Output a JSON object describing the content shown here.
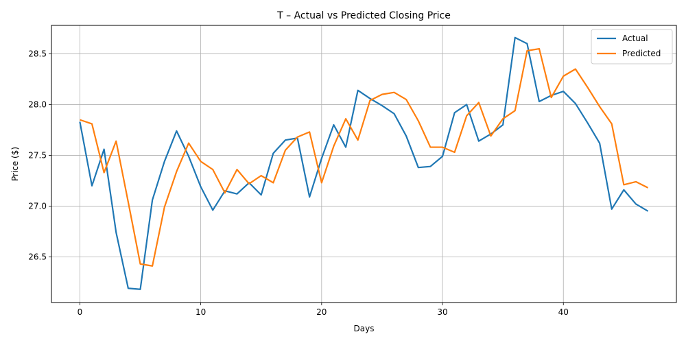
{
  "chart_data": {
    "type": "line",
    "title": "T – Actual vs Predicted Closing Price",
    "xlabel": "Days",
    "ylabel": "Price ($)",
    "xlim": [
      -2.35,
      49.35
    ],
    "ylim": [
      26.05,
      28.78
    ],
    "xticks": [
      0,
      10,
      20,
      30,
      40
    ],
    "yticks": [
      26.5,
      27.0,
      27.5,
      28.0,
      28.5
    ],
    "ytick_labels": [
      "26.5",
      "27.0",
      "27.5",
      "28.0",
      "28.5"
    ],
    "grid": true,
    "legend_position": "top-right",
    "series": [
      {
        "name": "Actual",
        "color": "#1f77b4",
        "values": [
          27.83,
          27.2,
          27.56,
          26.74,
          26.19,
          26.18,
          27.06,
          27.44,
          27.74,
          27.49,
          27.19,
          26.96,
          27.15,
          27.12,
          27.23,
          27.11,
          27.52,
          27.65,
          27.67,
          27.09,
          27.47,
          27.8,
          27.58,
          28.14,
          28.06,
          27.99,
          27.91,
          27.69,
          27.38,
          27.39,
          27.49,
          27.92,
          28.0,
          27.64,
          27.71,
          27.8,
          28.66,
          28.6,
          28.03,
          28.09,
          28.13,
          28.01,
          27.82,
          27.62,
          26.97,
          27.16,
          27.02,
          26.95
        ]
      },
      {
        "name": "Predicted",
        "color": "#ff7f0e",
        "values": [
          27.85,
          27.81,
          27.33,
          27.64,
          27.04,
          26.43,
          26.41,
          26.99,
          27.34,
          27.62,
          27.44,
          27.36,
          27.13,
          27.36,
          27.22,
          27.3,
          27.23,
          27.55,
          27.68,
          27.73,
          27.23,
          27.59,
          27.86,
          27.65,
          28.04,
          28.1,
          28.12,
          28.05,
          27.84,
          27.58,
          27.58,
          27.53,
          27.89,
          28.02,
          27.69,
          27.86,
          27.94,
          28.53,
          28.55,
          28.07,
          28.28,
          28.35,
          28.17,
          27.98,
          27.81,
          27.21,
          27.24,
          27.18
        ]
      }
    ]
  }
}
